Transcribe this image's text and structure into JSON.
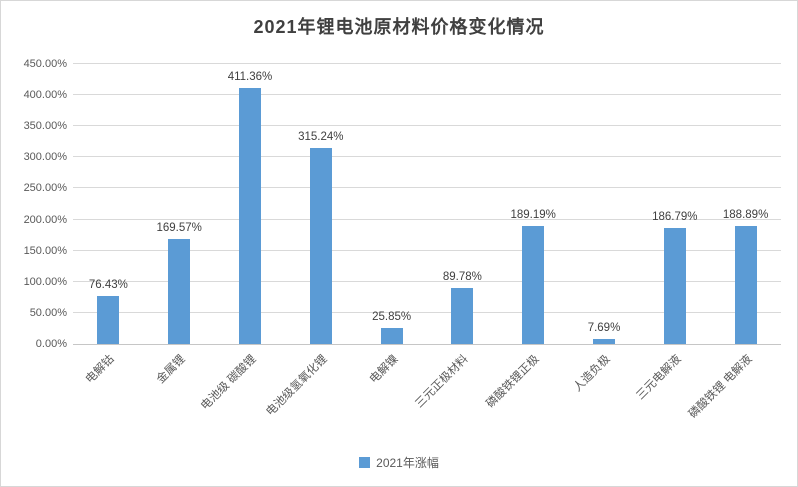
{
  "title": "2021年锂电池原材料价格变化情况",
  "legend": {
    "label": "2021年涨幅",
    "marker_color": "#5b9bd5"
  },
  "colors": {
    "bar": "#5b9bd5",
    "gridline": "#d9d9d9",
    "axis_line": "#c6c6c6",
    "tick_text": "#595959",
    "title_text": "#404040",
    "data_label_text": "#404040",
    "frame_border": "#d7d7d7"
  },
  "chart_data": {
    "type": "bar",
    "title": "2021年锂电池原材料价格变化情况",
    "categories": [
      "电解钴",
      "金属锂",
      "电池级 碳酸锂",
      "电池级氢氧化锂",
      "电解镍",
      "三元正极材料",
      "磷酸铁锂正极",
      "人造负极",
      "三元电解液",
      "磷酸铁锂 电解液"
    ],
    "values": [
      76.43,
      169.57,
      411.36,
      315.24,
      25.85,
      89.78,
      189.19,
      7.69,
      186.79,
      188.89
    ],
    "data_labels": [
      "76.43%",
      "169.57%",
      "411.36%",
      "315.24%",
      "25.85%",
      "89.78%",
      "189.19%",
      "7.69%",
      "186.79%",
      "188.89%"
    ],
    "xlabel": "",
    "ylabel": "",
    "ylim": [
      0,
      450
    ],
    "ytick_step": 50,
    "ytick_labels": [
      "0.00%",
      "50.00%",
      "100.00%",
      "150.00%",
      "200.00%",
      "250.00%",
      "300.00%",
      "350.00%",
      "400.00%",
      "450.00%"
    ],
    "grid": true,
    "legend_entries": [
      "2021年涨幅"
    ],
    "legend_position": "bottom"
  }
}
